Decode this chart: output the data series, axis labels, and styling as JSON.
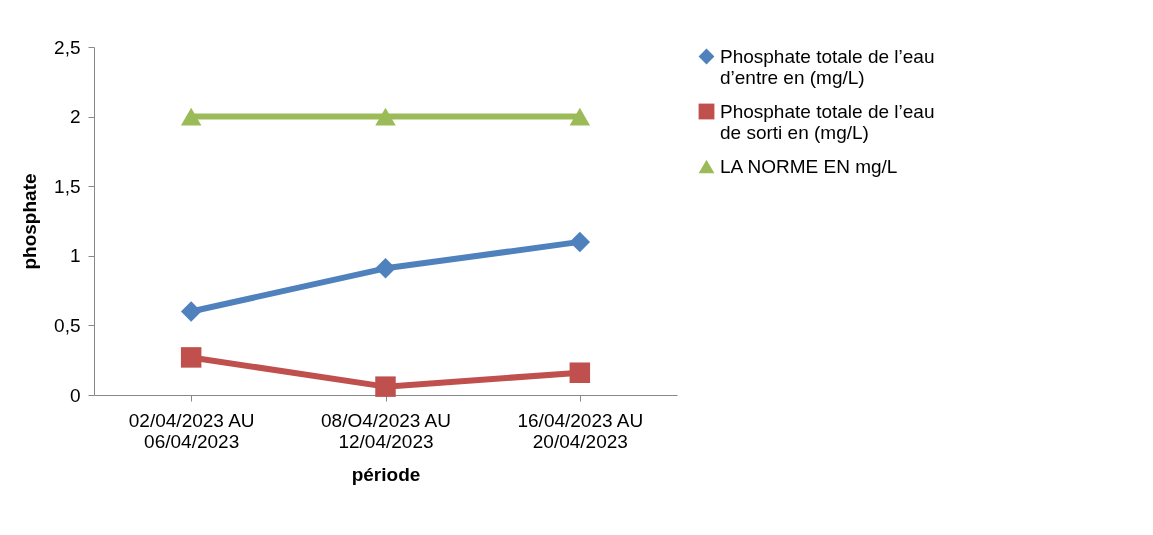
{
  "chart_data": {
    "type": "line",
    "xlabel": "période",
    "ylabel": "phosphate",
    "categories": [
      "02/04/2023 AU 06/04/2023",
      "08/O4/2023 AU 12/04/2023",
      "16/04/2023 AU 20/04/2023"
    ],
    "series": [
      {
        "name": "Phosphate totale de l’eau d’entre en (mg/L)",
        "color": "#4f81bd",
        "marker": "diamond",
        "values": [
          0.6,
          0.91,
          1.1
        ]
      },
      {
        "name": "Phosphate totale de l’eau de sorti en (mg/L)",
        "color": "#c0504d",
        "marker": "square",
        "values": [
          0.27,
          0.06,
          0.16
        ]
      },
      {
        "name": "LA NORME EN mg/L",
        "color": "#9bbb59",
        "marker": "triangle",
        "values": [
          2,
          2,
          2
        ]
      }
    ],
    "ylim": [
      0,
      2.5
    ],
    "yticks": [
      0,
      {
        "value": 0.5,
        "label": "0,5"
      },
      1,
      {
        "value": 1.5,
        "label": "1,5"
      },
      2,
      {
        "value": 2.5,
        "label": "2,5"
      }
    ],
    "grid": false,
    "legend": "right"
  }
}
